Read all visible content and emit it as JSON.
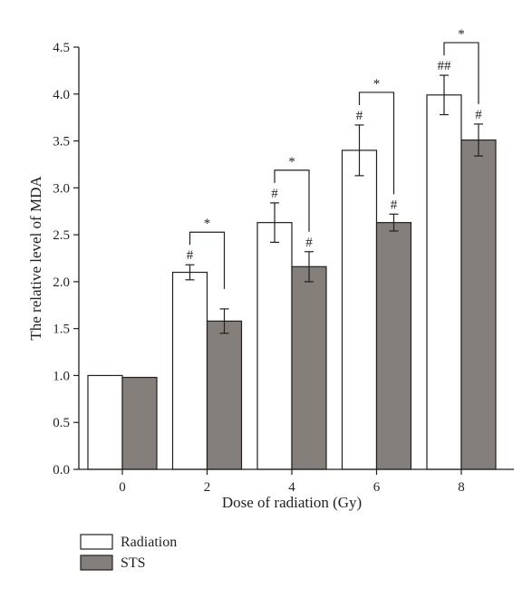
{
  "chart_data": {
    "type": "bar",
    "xlabel": "Dose of radiation (Gy)",
    "ylabel": "The relative level of MDA",
    "categories": [
      "0",
      "2",
      "4",
      "6",
      "8"
    ],
    "ylim": [
      0,
      4.5
    ],
    "yticks": [
      "0.0",
      "0.5",
      "1.0",
      "1.5",
      "2.0",
      "2.5",
      "3.0",
      "3.5",
      "4.0",
      "4.5"
    ],
    "grid": false,
    "legend_position": "bottom-left",
    "series": [
      {
        "name": "Radiation",
        "color": "#ffffff",
        "values": [
          1.0,
          2.1,
          2.63,
          3.4,
          3.99
        ],
        "error": [
          0,
          0.08,
          0.21,
          0.27,
          0.21
        ],
        "annotations": [
          "",
          "#",
          "#",
          "#",
          "##"
        ]
      },
      {
        "name": "STS",
        "color": "#857f7b",
        "values": [
          0.98,
          1.58,
          2.16,
          2.63,
          3.51
        ],
        "error": [
          0,
          0.13,
          0.16,
          0.09,
          0.17
        ],
        "annotations": [
          "",
          "",
          "#",
          "#",
          "#"
        ]
      }
    ],
    "comparisons": [
      {
        "category": "2",
        "label": "*"
      },
      {
        "category": "4",
        "label": "*"
      },
      {
        "category": "6",
        "label": "*"
      },
      {
        "category": "8",
        "label": "*"
      }
    ]
  }
}
